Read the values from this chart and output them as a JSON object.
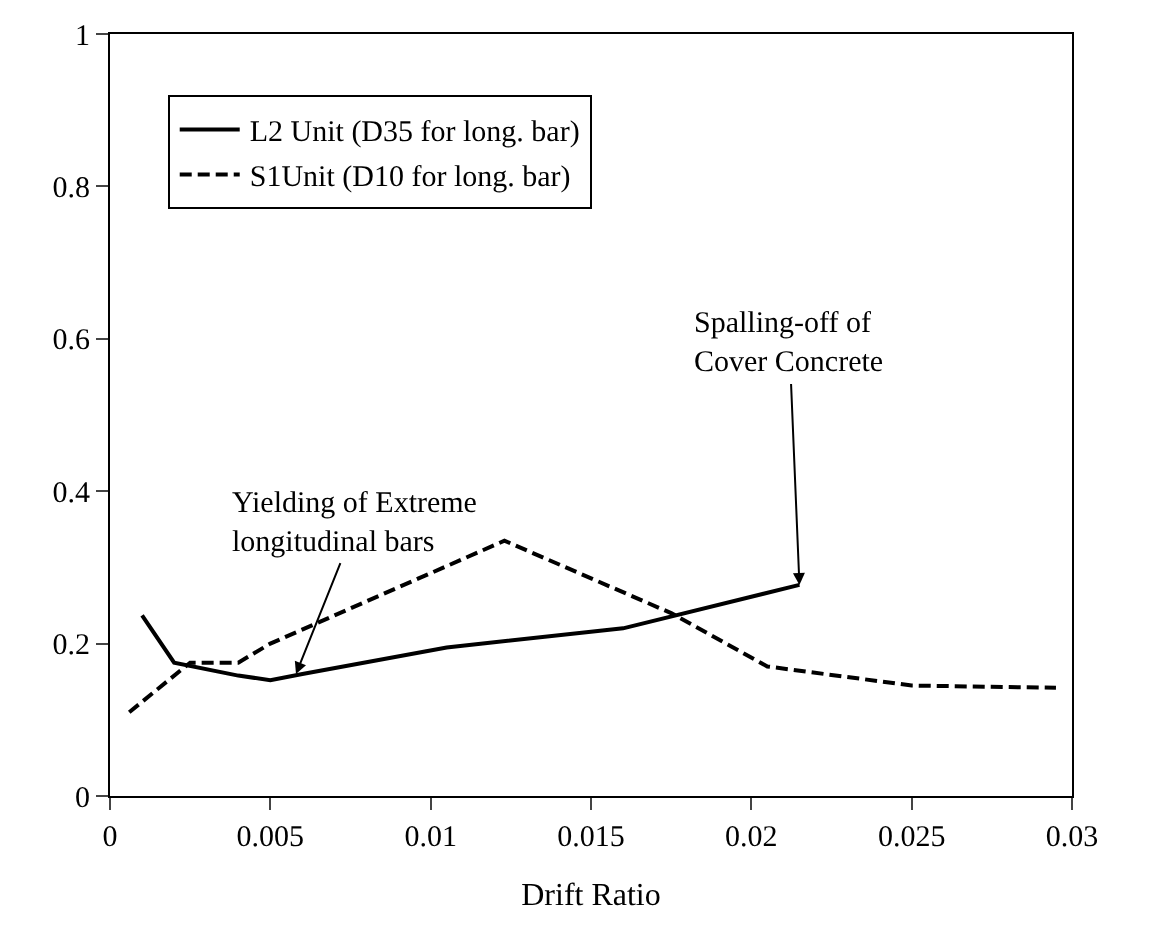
{
  "chart_data": {
    "type": "line",
    "xlabel": "Drift Ratio",
    "series": [
      {
        "name": "L2 Unit (D35 for long. bar)",
        "color": "#000000",
        "line_style": "solid",
        "x": [
          0.001,
          0.002,
          0.004,
          0.005,
          0.006,
          0.0105,
          0.016,
          0.0215
        ],
        "values": [
          0.237,
          0.175,
          0.158,
          0.152,
          0.16,
          0.195,
          0.22,
          0.277
        ]
      },
      {
        "name": "S1Unit (D10 for long. bar)",
        "color": "#000000",
        "line_style": "dashed",
        "x": [
          0.0006,
          0.0025,
          0.004,
          0.005,
          0.0123,
          0.0175,
          0.0205,
          0.025,
          0.0295
        ],
        "values": [
          0.11,
          0.175,
          0.175,
          0.2,
          0.335,
          0.24,
          0.17,
          0.145,
          0.142
        ]
      }
    ],
    "xlim": [
      0,
      0.03
    ],
    "xticks": [
      0,
      0.005,
      0.01,
      0.015,
      0.02,
      0.025,
      0.03
    ],
    "ylim": [
      0,
      1
    ],
    "yticks": [
      0,
      0.2,
      0.4,
      0.6,
      0.8,
      1
    ],
    "legend": "top left",
    "marker": "none",
    "annotations": [
      {
        "text": "Yielding of Extreme\nlongitudinal bars",
        "x": 0.0058,
        "y": 0.16
      },
      {
        "text": "Spalling-off of\nCover Concrete",
        "x": 0.0215,
        "y": 0.277
      }
    ]
  }
}
